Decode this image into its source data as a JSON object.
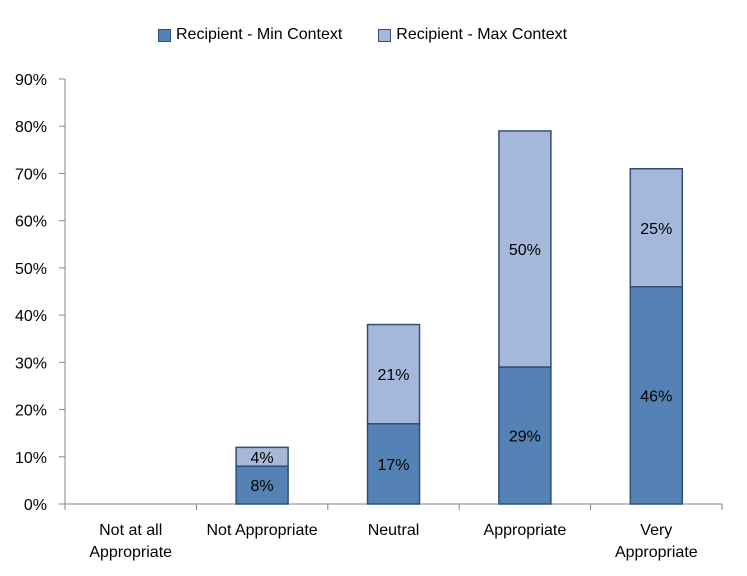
{
  "chart_data": {
    "type": "bar",
    "stacked": true,
    "categories": [
      [
        "Not at all",
        "Appropriate"
      ],
      [
        "Not Appropriate"
      ],
      [
        "Neutral"
      ],
      [
        "Appropriate"
      ],
      [
        "Very",
        "Appropriate"
      ]
    ],
    "series": [
      {
        "name": "Recipient - Min Context",
        "color": "#5582b5",
        "values": [
          0,
          8,
          17,
          29,
          46
        ],
        "labels": [
          "",
          "8%",
          "17%",
          "29%",
          "46%"
        ]
      },
      {
        "name": "Recipient - Max Context",
        "color": "#a5b8da",
        "values": [
          0,
          4,
          21,
          50,
          25
        ],
        "labels": [
          "",
          "4%",
          "21%",
          "50%",
          "25%"
        ]
      }
    ],
    "ylim": [
      0,
      90
    ],
    "yticks": [
      "0%",
      "10%",
      "20%",
      "30%",
      "40%",
      "50%",
      "60%",
      "70%",
      "80%",
      "90%"
    ],
    "legend_position": "top-center",
    "grid": false
  }
}
